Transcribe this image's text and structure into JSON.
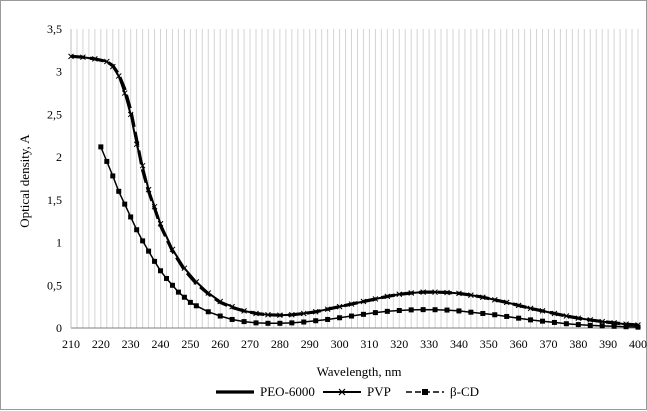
{
  "chart_data": {
    "type": "line",
    "title": "",
    "xlabel": "Wavelength, nm",
    "ylabel": "Optical density, A",
    "xlim": [
      210,
      400
    ],
    "ylim": [
      0,
      3.5
    ],
    "x_ticks": [
      "210",
      "220",
      "230",
      "240",
      "250",
      "260",
      "270",
      "280",
      "290",
      "300",
      "310",
      "320",
      "330",
      "340",
      "350",
      "360",
      "370",
      "380",
      "390",
      "400"
    ],
    "y_ticks": [
      "0",
      "0,5",
      "1",
      "1,5",
      "2",
      "2,5",
      "3",
      "3,5"
    ],
    "grid": "vertical lines every 2 nm",
    "legend_position": "bottom",
    "series": [
      {
        "name": "PEO-6000",
        "color": "#000000",
        "x": [
          210,
          214,
          218,
          222,
          224,
          226,
          228,
          230,
          232,
          234,
          236,
          238,
          240,
          244,
          248,
          252,
          256,
          260,
          264,
          268,
          272,
          276,
          280,
          284,
          288,
          292,
          296,
          300,
          304,
          308,
          312,
          316,
          320,
          324,
          328,
          332,
          336,
          340,
          344,
          348,
          352,
          356,
          360,
          364,
          368,
          372,
          376,
          380,
          384,
          388,
          392,
          396,
          400
        ],
        "y": [
          3.18,
          3.17,
          3.15,
          3.12,
          3.07,
          2.97,
          2.8,
          2.55,
          2.2,
          1.85,
          1.6,
          1.4,
          1.2,
          0.9,
          0.68,
          0.52,
          0.4,
          0.3,
          0.24,
          0.2,
          0.17,
          0.155,
          0.15,
          0.155,
          0.17,
          0.19,
          0.22,
          0.25,
          0.28,
          0.31,
          0.34,
          0.37,
          0.395,
          0.41,
          0.42,
          0.42,
          0.415,
          0.405,
          0.385,
          0.36,
          0.33,
          0.3,
          0.265,
          0.23,
          0.2,
          0.17,
          0.14,
          0.115,
          0.095,
          0.075,
          0.06,
          0.045,
          0.035
        ]
      },
      {
        "name": "PVP",
        "color": "#000000",
        "x": [
          210,
          214,
          218,
          222,
          224,
          226,
          228,
          230,
          232,
          234,
          236,
          238,
          240,
          244,
          248,
          252,
          256,
          260,
          264,
          268,
          272,
          276,
          280,
          284,
          288,
          292,
          296,
          300,
          304,
          308,
          312,
          316,
          320,
          324,
          328,
          332,
          336,
          340,
          344,
          348,
          352,
          356,
          360,
          364,
          368,
          372,
          376,
          380,
          384,
          388,
          392,
          396,
          400
        ],
        "y": [
          3.18,
          3.17,
          3.15,
          3.12,
          3.06,
          2.95,
          2.75,
          2.5,
          2.15,
          1.9,
          1.62,
          1.42,
          1.22,
          0.92,
          0.7,
          0.54,
          0.41,
          0.31,
          0.25,
          0.2,
          0.17,
          0.155,
          0.15,
          0.155,
          0.17,
          0.19,
          0.22,
          0.25,
          0.28,
          0.31,
          0.34,
          0.37,
          0.395,
          0.41,
          0.42,
          0.42,
          0.415,
          0.405,
          0.385,
          0.36,
          0.33,
          0.3,
          0.265,
          0.23,
          0.2,
          0.17,
          0.14,
          0.115,
          0.095,
          0.075,
          0.06,
          0.045,
          0.035
        ]
      },
      {
        "name": "β-CD",
        "color": "#000000",
        "x": [
          220,
          222,
          224,
          226,
          228,
          230,
          232,
          234,
          236,
          238,
          240,
          242,
          244,
          246,
          248,
          250,
          252,
          256,
          260,
          264,
          268,
          272,
          276,
          280,
          284,
          288,
          292,
          296,
          300,
          304,
          308,
          312,
          316,
          320,
          324,
          328,
          332,
          336,
          340,
          344,
          348,
          352,
          356,
          360,
          364,
          368,
          372,
          376,
          380,
          384,
          388,
          392,
          396,
          400
        ],
        "y": [
          2.12,
          1.95,
          1.78,
          1.6,
          1.45,
          1.3,
          1.15,
          1.02,
          0.9,
          0.78,
          0.67,
          0.58,
          0.5,
          0.42,
          0.36,
          0.3,
          0.26,
          0.19,
          0.14,
          0.1,
          0.075,
          0.06,
          0.055,
          0.055,
          0.06,
          0.07,
          0.085,
          0.1,
          0.12,
          0.14,
          0.16,
          0.18,
          0.195,
          0.205,
          0.212,
          0.215,
          0.214,
          0.21,
          0.2,
          0.185,
          0.17,
          0.155,
          0.135,
          0.115,
          0.095,
          0.08,
          0.065,
          0.05,
          0.04,
          0.03,
          0.025,
          0.02,
          0.015,
          0.01
        ]
      }
    ]
  }
}
